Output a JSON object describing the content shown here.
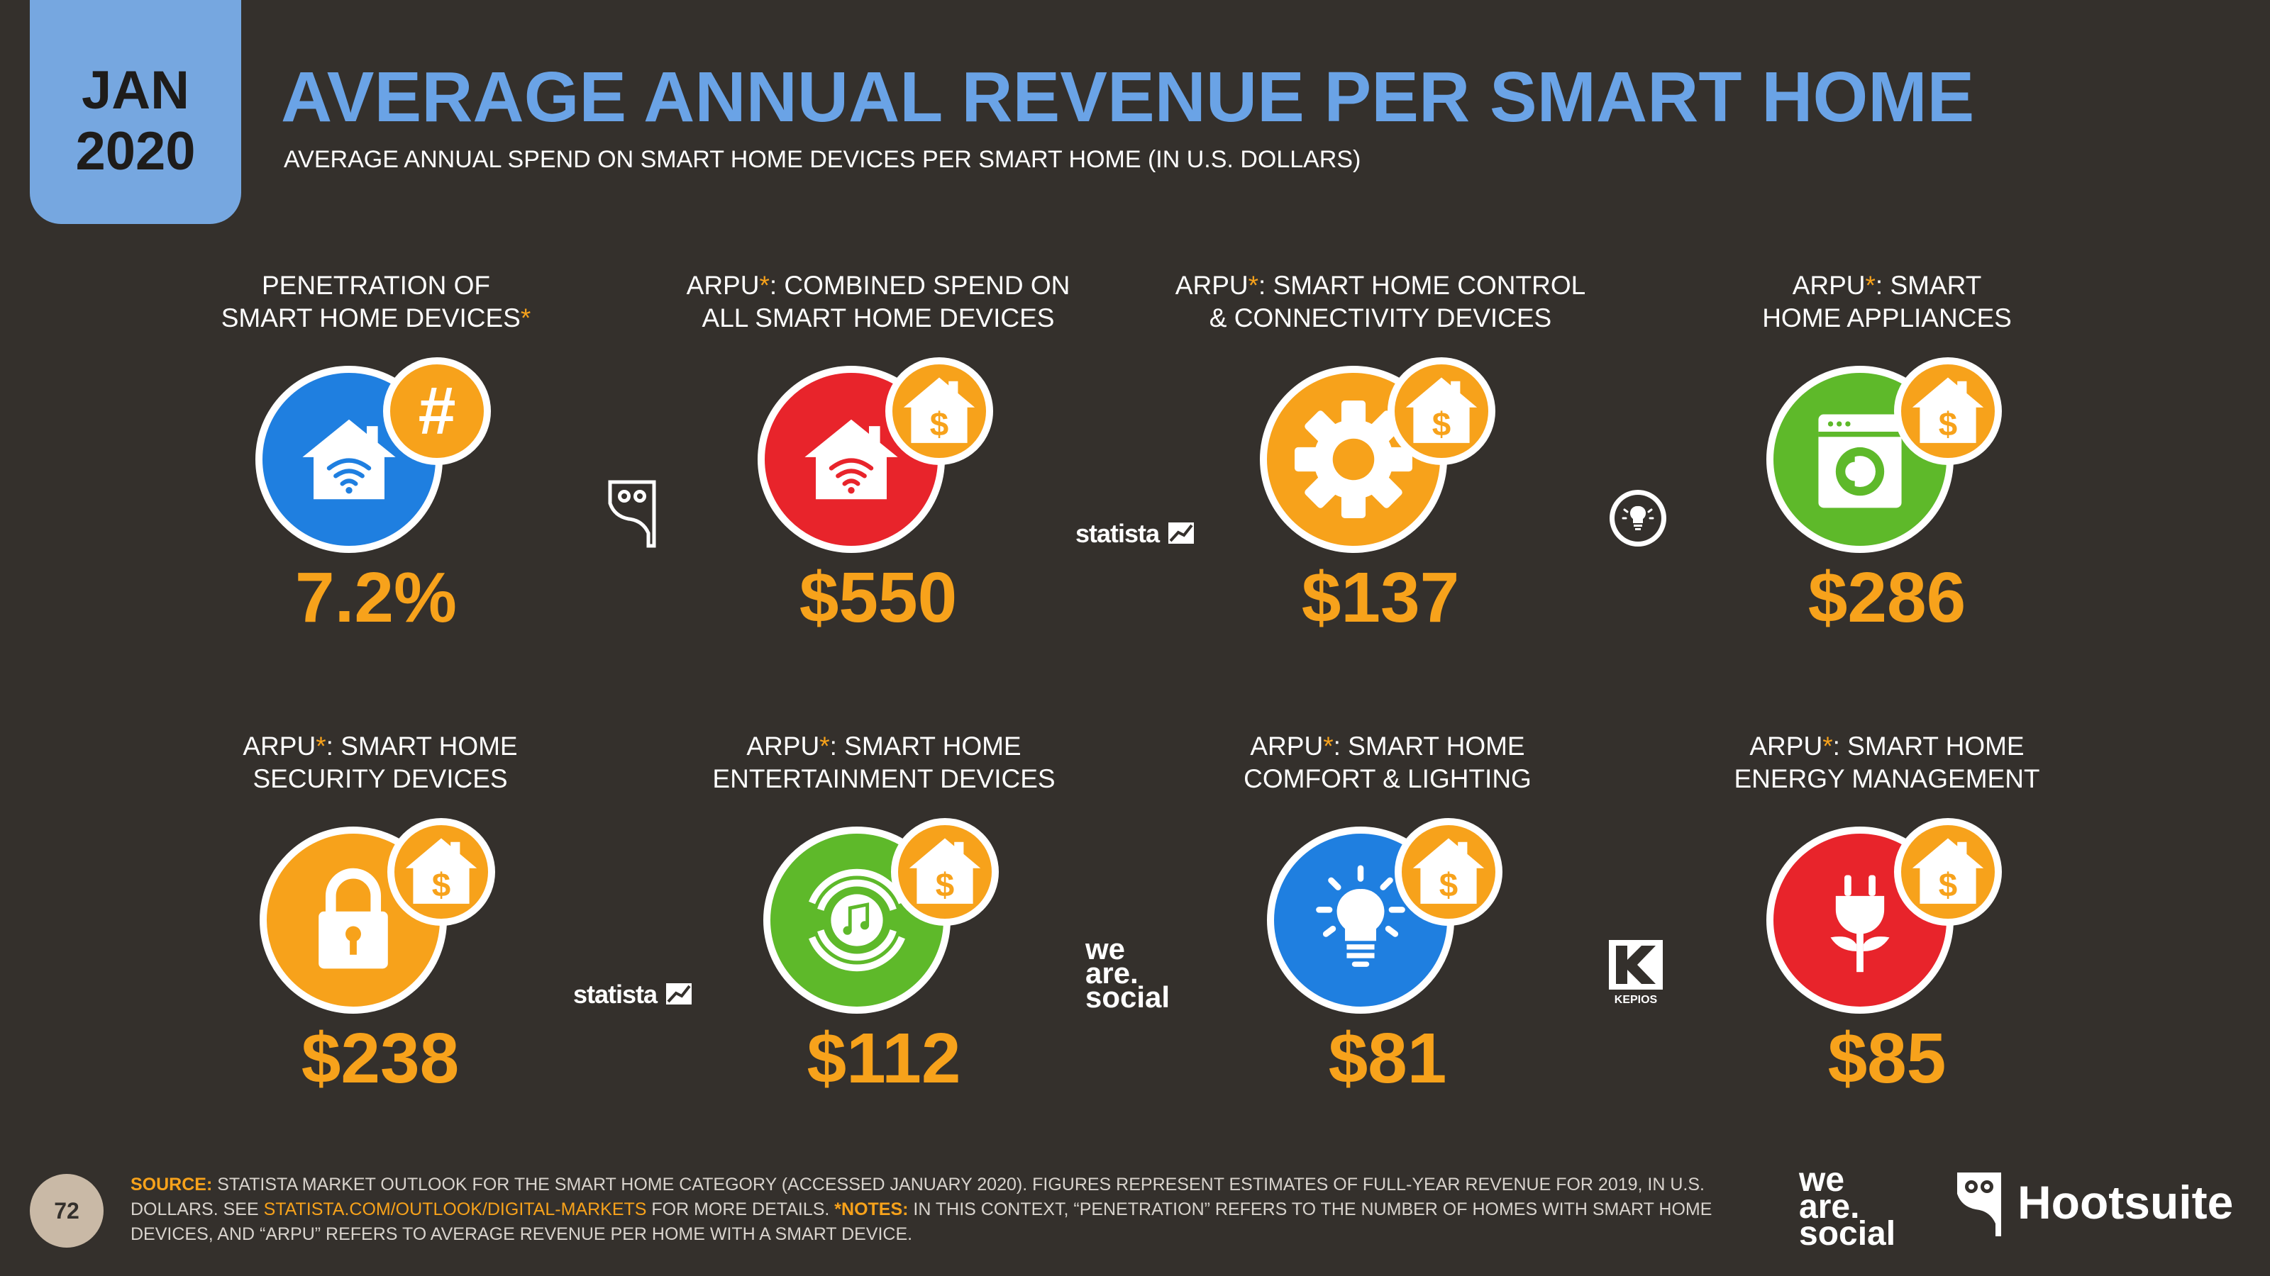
{
  "header": {
    "month": "JAN",
    "year": "2020",
    "title": "AVERAGE ANNUAL REVENUE PER SMART HOME",
    "subtitle": "AVERAGE ANNUAL SPEND ON SMART HOME DEVICES PER SMART HOME (IN U.S. DOLLARS)"
  },
  "stats": [
    {
      "label_pre": "PENETRATION OF",
      "label_star": "",
      "label_post": "",
      "label_line2": "SMART HOME DEVICES",
      "label_line2_star": "*",
      "value": "7.2%",
      "icon": "smart-home-wifi-hash-icon",
      "color": "#1f7fe0"
    },
    {
      "label_pre": "ARPU",
      "label_star": "*",
      "label_post": ": COMBINED SPEND ON",
      "label_line2": "ALL SMART HOME DEVICES",
      "label_line2_star": "",
      "value": "$550",
      "icon": "smart-home-wifi-dollar-icon",
      "color": "#e8242b"
    },
    {
      "label_pre": "ARPU",
      "label_star": "*",
      "label_post": ": SMART HOME CONTROL",
      "label_line2": "& CONNECTIVITY DEVICES",
      "label_line2_star": "",
      "value": "$137",
      "icon": "gear-icon",
      "color": "#f7a21b"
    },
    {
      "label_pre": "ARPU",
      "label_star": "*",
      "label_post": ": SMART",
      "label_line2": "HOME APPLIANCES",
      "label_line2_star": "",
      "value": "$286",
      "icon": "washing-machine-icon",
      "color": "#5eb92a"
    },
    {
      "label_pre": "ARPU",
      "label_star": "*",
      "label_post": ": SMART HOME",
      "label_line2": "SECURITY DEVICES",
      "label_line2_star": "",
      "value": "$238",
      "icon": "padlock-icon",
      "color": "#f7a21b"
    },
    {
      "label_pre": "ARPU",
      "label_star": "*",
      "label_post": ": SMART HOME",
      "label_line2": "ENTERTAINMENT DEVICES",
      "label_line2_star": "",
      "value": "$112",
      "icon": "music-speaker-icon",
      "color": "#5eb92a"
    },
    {
      "label_pre": "ARPU",
      "label_star": "*",
      "label_post": ": SMART HOME",
      "label_line2": "COMFORT & LIGHTING",
      "label_line2_star": "",
      "value": "$81",
      "icon": "lightbulb-icon",
      "color": "#1f7fe0"
    },
    {
      "label_pre": "ARPU",
      "label_star": "*",
      "label_post": ": SMART HOME",
      "label_line2": "ENERGY MANAGEMENT",
      "label_line2_star": "",
      "value": "$85",
      "icon": "power-plug-icon",
      "color": "#e8242b"
    }
  ],
  "logos": {
    "statista": "statista",
    "we_are_social": [
      "we",
      "are.",
      "social"
    ],
    "kepios": "KEPIOS",
    "hootsuite": "Hootsuite"
  },
  "footer": {
    "page_number": "72",
    "source_label": "SOURCE:",
    "source_text": " STATISTA MARKET OUTLOOK FOR THE SMART HOME CATEGORY (ACCESSED JANUARY 2020). FIGURES REPRESENT ESTIMATES OF FULL-YEAR REVENUE FOR 2019, IN U.S. DOLLARS. SEE ",
    "link": "STATISTA.COM/OUTLOOK/DIGITAL-MARKETS",
    "more": " FOR MORE DETAILS. ",
    "notes_label": "*NOTES:",
    "notes_text": " IN THIS CONTEXT, “PENETRATION” REFERS TO THE NUMBER OF HOMES WITH SMART HOME DEVICES, AND “ARPU” REFERS TO AVERAGE REVENUE PER HOME WITH A SMART DEVICE."
  }
}
